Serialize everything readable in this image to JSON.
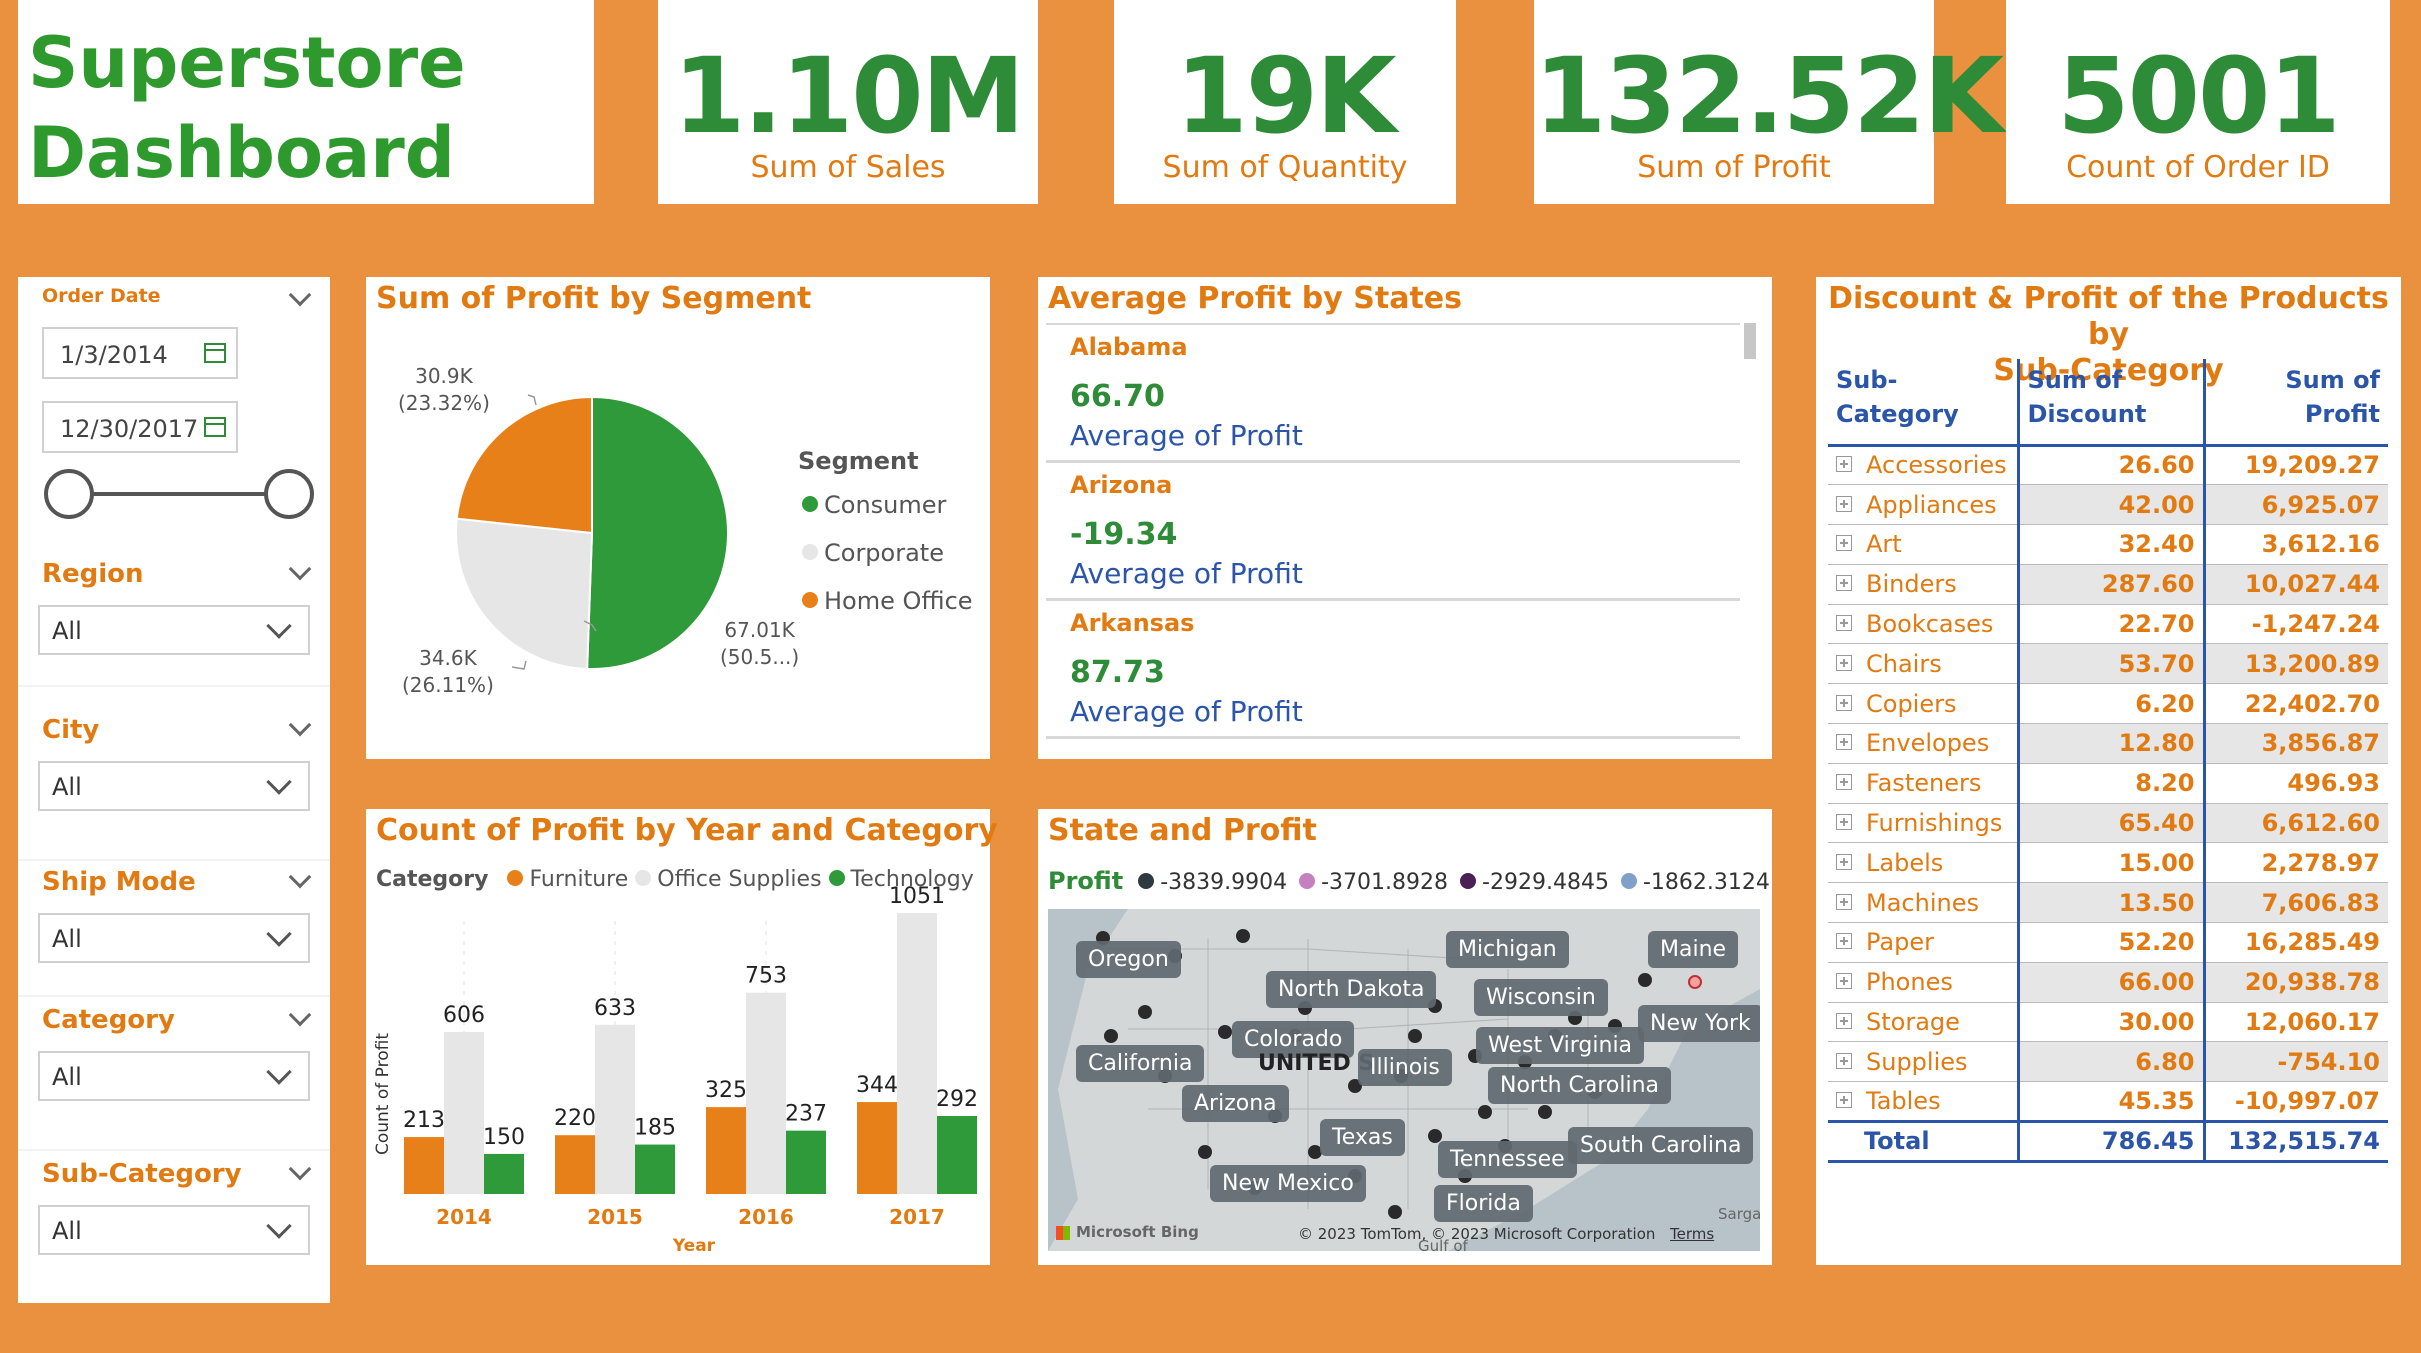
{
  "title": {
    "line1": "Superstore",
    "line2": "Dashboard"
  },
  "kpis": [
    {
      "value": "1.10M",
      "label": "Sum of Sales"
    },
    {
      "value": "19K",
      "label": "Sum of Quantity"
    },
    {
      "value": "132.52K",
      "label": "Sum of Profit"
    },
    {
      "value": "5001",
      "label": "Count of Order ID"
    }
  ],
  "slicers": {
    "order_date": {
      "label": "Order Date",
      "start": "1/3/2014",
      "end": "12/30/2017"
    },
    "region": {
      "label": "Region",
      "value": "All"
    },
    "city": {
      "label": "City",
      "value": "All"
    },
    "ship_mode": {
      "label": "Ship Mode",
      "value": "All"
    },
    "category": {
      "label": "Category",
      "value": "All"
    },
    "sub_category": {
      "label": "Sub-Category",
      "value": "All"
    }
  },
  "pie": {
    "title": "Sum of Profit by Segment",
    "legend_title": "Segment",
    "labels": {
      "consumer": {
        "v": "67.01K",
        "p": "(50.5...)"
      },
      "corporate": {
        "v": "34.6K",
        "p": "(26.11%)"
      },
      "home_office": {
        "v": "30.9K",
        "p": "(23.32%)"
      }
    },
    "colors": {
      "consumer": "#2E9A3A",
      "corporate": "#E6E6E6",
      "home_office": "#E8801A"
    }
  },
  "states": {
    "title": "Average Profit by States",
    "items": [
      {
        "name": "Alabama",
        "value": "66.70",
        "label": "Average of Profit"
      },
      {
        "name": "Arizona",
        "value": "-19.34",
        "label": "Average of Profit"
      },
      {
        "name": "Arkansas",
        "value": "87.73",
        "label": "Average of Profit"
      }
    ]
  },
  "table": {
    "title_line1": "Discount & Profit of the Products by",
    "title_line2": "Sub-Category",
    "headers": {
      "c1": "Sub-Category",
      "c2a": "Sum of",
      "c2b": "Discount",
      "c3": "Sum of Profit"
    },
    "rows": [
      {
        "name": "Accessories",
        "discount": "26.60",
        "profit": "19,209.27"
      },
      {
        "name": "Appliances",
        "discount": "42.00",
        "profit": "6,925.07"
      },
      {
        "name": "Art",
        "discount": "32.40",
        "profit": "3,612.16"
      },
      {
        "name": "Binders",
        "discount": "287.60",
        "profit": "10,027.44"
      },
      {
        "name": "Bookcases",
        "discount": "22.70",
        "profit": "-1,247.24"
      },
      {
        "name": "Chairs",
        "discount": "53.70",
        "profit": "13,200.89"
      },
      {
        "name": "Copiers",
        "discount": "6.20",
        "profit": "22,402.70"
      },
      {
        "name": "Envelopes",
        "discount": "12.80",
        "profit": "3,856.87"
      },
      {
        "name": "Fasteners",
        "discount": "8.20",
        "profit": "496.93"
      },
      {
        "name": "Furnishings",
        "discount": "65.40",
        "profit": "6,612.60"
      },
      {
        "name": "Labels",
        "discount": "15.00",
        "profit": "2,278.97"
      },
      {
        "name": "Machines",
        "discount": "13.50",
        "profit": "7,606.83"
      },
      {
        "name": "Paper",
        "discount": "52.20",
        "profit": "16,285.49"
      },
      {
        "name": "Phones",
        "discount": "66.00",
        "profit": "20,938.78"
      },
      {
        "name": "Storage",
        "discount": "30.00",
        "profit": "12,060.17"
      },
      {
        "name": "Supplies",
        "discount": "6.80",
        "profit": "-754.10"
      },
      {
        "name": "Tables",
        "discount": "45.35",
        "profit": "-10,997.07"
      }
    ],
    "total": {
      "name": "Total",
      "discount": "786.45",
      "profit": "132,515.74"
    }
  },
  "map": {
    "title": "State and Profit",
    "legend_title": "Profit",
    "legend": [
      {
        "label": "-3839.9904",
        "color": "#2F3A40"
      },
      {
        "label": "-3701.8928",
        "color": "#C580C0"
      },
      {
        "label": "-2929.4845",
        "color": "#4A2056"
      },
      {
        "label": "-1862.3124",
        "color": "#7FA0C8"
      }
    ],
    "labels": [
      "Oregon",
      "North Dakota",
      "Michigan",
      "Maine",
      "Wisconsin",
      "Colorado",
      "New York",
      "California",
      "UNITED S",
      "Illinois",
      "West Virginia",
      "Arizona",
      "North Carolina",
      "Texas",
      "Tennessee",
      "South Carolina",
      "New Mexico",
      "Florida"
    ],
    "footer": {
      "bing": "Microsoft Bing",
      "copyright": "© 2023 TomTom, © 2023 Microsoft Corporation",
      "terms": "Terms",
      "gulf": "Gulf of",
      "sarga": "Sarga"
    }
  },
  "chart_data": [
    {
      "type": "pie",
      "title": "Sum of Profit by Segment",
      "legend_title": "Segment",
      "categories": [
        "Consumer",
        "Corporate",
        "Home Office"
      ],
      "values": [
        67010,
        34600,
        30900
      ],
      "percents": [
        50.57,
        26.11,
        23.32
      ],
      "colors": [
        "#2E9A3A",
        "#E6E6E6",
        "#E8801A"
      ],
      "legend_position": "right"
    },
    {
      "type": "bar",
      "title": "Count of Profit by Year and Category",
      "legend_title": "Category",
      "xlabel": "Year",
      "ylabel": "Count of Profit",
      "categories": [
        "2014",
        "2015",
        "2016",
        "2017"
      ],
      "series": [
        {
          "name": "Furniture",
          "color": "#E8801A",
          "values": [
            213,
            220,
            325,
            344
          ]
        },
        {
          "name": "Office Supplies",
          "color": "#E6E6E6",
          "values": [
            606,
            633,
            753,
            1051
          ]
        },
        {
          "name": "Technology",
          "color": "#2E9A3A",
          "values": [
            150,
            185,
            237,
            292
          ]
        }
      ],
      "ylim": [
        0,
        1100
      ],
      "legend_position": "top-left"
    }
  ]
}
